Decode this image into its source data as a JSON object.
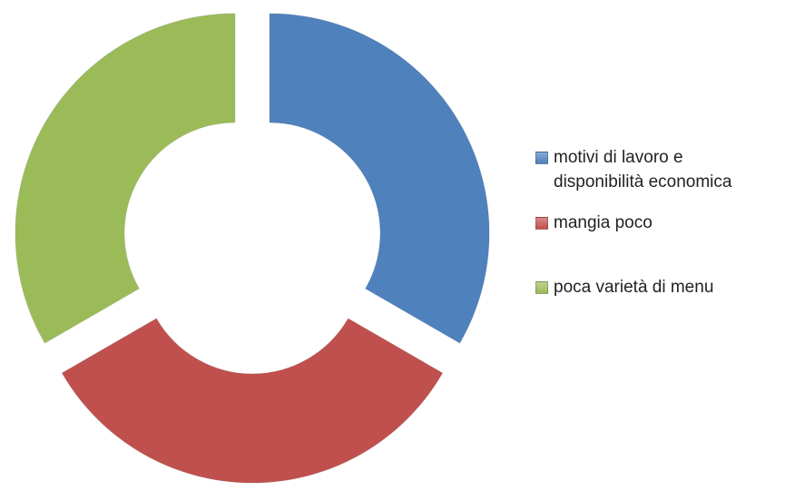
{
  "chart_data": {
    "type": "donut",
    "categories": [
      "motivi di lavoro e disponibilità economica",
      "mangia poco",
      "poca varietà di menu"
    ],
    "values": [
      33.3,
      33.3,
      33.3
    ],
    "colors": [
      "#4f81bd",
      "#c0504d",
      "#9bbb59"
    ],
    "legend": "right"
  }
}
